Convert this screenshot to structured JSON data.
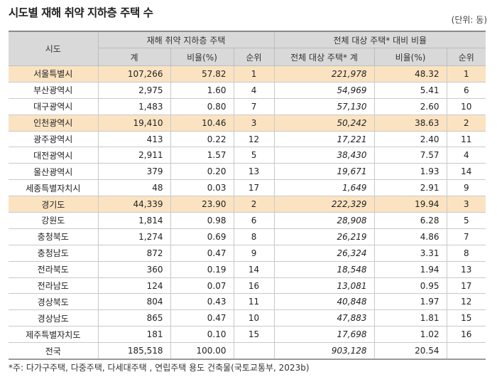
{
  "title": "시도별 재해 취약 지하층 주택 수",
  "unit": "(단위: 동)",
  "header": {
    "region": "시도",
    "group1": "재해 취약 지하층 주택",
    "group2": "전체 대상 주택* 대비 비율",
    "count": "계",
    "ratio": "비율(%)",
    "rank": "순위",
    "total_target": "전체 대상 주택* 계",
    "ratio2": "비율(%)",
    "rank2": "순위"
  },
  "rows": [
    {
      "region": "서울특별시",
      "count": "107,266",
      "ratio": "57.82",
      "rank": "1",
      "total": "221,978",
      "ratio2": "48.32",
      "rank2": "1",
      "highlight": true
    },
    {
      "region": "부산광역시",
      "count": "2,975",
      "ratio": "1.60",
      "rank": "4",
      "total": "54,969",
      "ratio2": "5.41",
      "rank2": "6",
      "highlight": false
    },
    {
      "region": "대구광역시",
      "count": "1,483",
      "ratio": "0.80",
      "rank": "7",
      "total": "57,130",
      "ratio2": "2.60",
      "rank2": "10",
      "highlight": false
    },
    {
      "region": "인천광역시",
      "count": "19,410",
      "ratio": "10.46",
      "rank": "3",
      "total": "50,242",
      "ratio2": "38.63",
      "rank2": "2",
      "highlight": true
    },
    {
      "region": "광주광역시",
      "count": "413",
      "ratio": "0.22",
      "rank": "12",
      "total": "17,221",
      "ratio2": "2.40",
      "rank2": "11",
      "highlight": false
    },
    {
      "region": "대전광역시",
      "count": "2,911",
      "ratio": "1.57",
      "rank": "5",
      "total": "38,430",
      "ratio2": "7.57",
      "rank2": "4",
      "highlight": false
    },
    {
      "region": "울산광역시",
      "count": "379",
      "ratio": "0.20",
      "rank": "13",
      "total": "19,671",
      "ratio2": "1.93",
      "rank2": "14",
      "highlight": false
    },
    {
      "region": "세종특별자치시",
      "count": "48",
      "ratio": "0.03",
      "rank": "17",
      "total": "1,649",
      "ratio2": "2.91",
      "rank2": "9",
      "highlight": false
    },
    {
      "region": "경기도",
      "count": "44,339",
      "ratio": "23.90",
      "rank": "2",
      "total": "222,329",
      "ratio2": "19.94",
      "rank2": "3",
      "highlight": true
    },
    {
      "region": "강원도",
      "count": "1,814",
      "ratio": "0.98",
      "rank": "6",
      "total": "28,908",
      "ratio2": "6.28",
      "rank2": "5",
      "highlight": false
    },
    {
      "region": "충청북도",
      "count": "1,274",
      "ratio": "0.69",
      "rank": "8",
      "total": "26,219",
      "ratio2": "4.86",
      "rank2": "7",
      "highlight": false
    },
    {
      "region": "충청남도",
      "count": "872",
      "ratio": "0.47",
      "rank": "9",
      "total": "26,324",
      "ratio2": "3.31",
      "rank2": "8",
      "highlight": false
    },
    {
      "region": "전라북도",
      "count": "360",
      "ratio": "0.19",
      "rank": "14",
      "total": "18,548",
      "ratio2": "1.94",
      "rank2": "13",
      "highlight": false
    },
    {
      "region": "전라남도",
      "count": "124",
      "ratio": "0.07",
      "rank": "16",
      "total": "13,081",
      "ratio2": "0.95",
      "rank2": "17",
      "highlight": false
    },
    {
      "region": "경상북도",
      "count": "804",
      "ratio": "0.43",
      "rank": "11",
      "total": "40,848",
      "ratio2": "1.97",
      "rank2": "12",
      "highlight": false
    },
    {
      "region": "경상남도",
      "count": "865",
      "ratio": "0.47",
      "rank": "10",
      "total": "47,883",
      "ratio2": "1.81",
      "rank2": "15",
      "highlight": false
    },
    {
      "region": "제주특별자치도",
      "count": "181",
      "ratio": "0.10",
      "rank": "15",
      "total": "17,698",
      "ratio2": "1.02",
      "rank2": "16",
      "highlight": false
    },
    {
      "region": "전국",
      "count": "185,518",
      "ratio": "100.00",
      "rank": "",
      "total": "903,128",
      "ratio2": "20.54",
      "rank2": "",
      "highlight": false
    }
  ],
  "footnote": "*주: 다가구주택, 다중주택, 다세대주택 , 연립주택 용도 건축물(국토교통부, 2023b)",
  "colors": {
    "header_bg": "#d9d9d9",
    "highlight_bg": "#fbe3c2"
  }
}
